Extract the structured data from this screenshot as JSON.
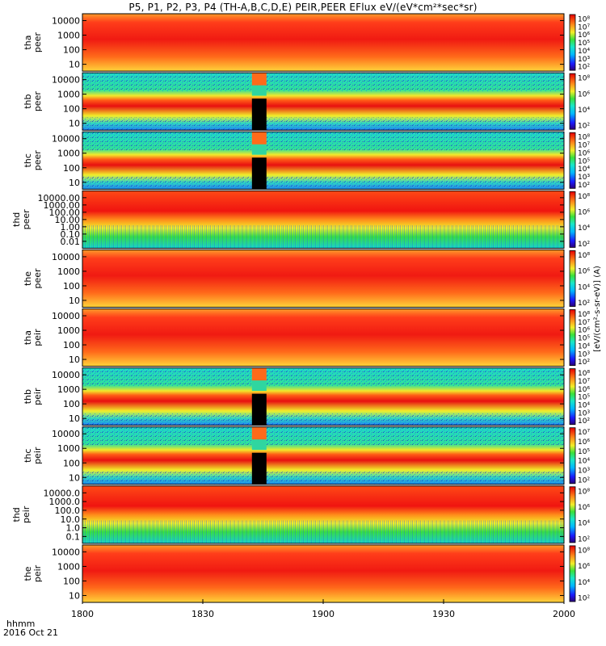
{
  "title": "P5, P1, P2, P3, P4 (TH-A,B,C,D,E) PEIR,PEER EFlux eV/(eV*cm²*sec*sr)",
  "footer": {
    "time_format": "hhmm",
    "date": "2016 Oct 21"
  },
  "chart_data": {
    "type": "heatmap",
    "x_axis": {
      "ticks": [
        "1800",
        "1830",
        "1900",
        "1930",
        "2000"
      ],
      "range": [
        "18:00",
        "20:00"
      ]
    },
    "colorbar_unit_label": "[eV/(cm²-s-sr-eV)] (A)",
    "panels": [
      {
        "name": "tha peer",
        "label": [
          "tha",
          "peer"
        ],
        "y_ticks": [
          "10000",
          "1000",
          "100",
          "10"
        ],
        "color_ticks": [
          "10⁸",
          "10⁷",
          "10⁶",
          "10⁵",
          "10⁴",
          "10³",
          "10²"
        ],
        "band": "broad"
      },
      {
        "name": "thb peer",
        "label": [
          "thb",
          "peer"
        ],
        "y_ticks": [
          "10000",
          "1000",
          "100",
          "10"
        ],
        "color_ticks": [
          "10⁸",
          "10⁶",
          "10⁴",
          "10²"
        ],
        "band": "mid",
        "gap": true
      },
      {
        "name": "thc peer",
        "label": [
          "thc",
          "peer"
        ],
        "y_ticks": [
          "10000",
          "1000",
          "100",
          "10"
        ],
        "color_ticks": [
          "10⁸",
          "10⁷",
          "10⁶",
          "10⁵",
          "10⁴",
          "10³",
          "10²"
        ],
        "band": "mid",
        "gap": true
      },
      {
        "name": "thd peer",
        "label": [
          "thd",
          "peer"
        ],
        "y_ticks": [
          "10000.00",
          "1000.00",
          "100.00",
          "10.00",
          "1.00",
          "0.10",
          "0.01"
        ],
        "color_ticks": [
          "10⁸",
          "10⁶",
          "10⁴",
          "10²"
        ],
        "band": "upper"
      },
      {
        "name": "the peer",
        "label": [
          "the",
          "peer"
        ],
        "y_ticks": [
          "10000",
          "1000",
          "100",
          "10"
        ],
        "color_ticks": [
          "10⁸",
          "10⁶",
          "10⁴",
          "10²"
        ],
        "band": "broad"
      },
      {
        "name": "tha peir",
        "label": [
          "tha",
          "peir"
        ],
        "y_ticks": [
          "10000",
          "1000",
          "100",
          "10"
        ],
        "color_ticks": [
          "10⁸",
          "10⁷",
          "10⁶",
          "10⁵",
          "10⁴",
          "10³",
          "10²"
        ],
        "band": "broad"
      },
      {
        "name": "thb peir",
        "label": [
          "thb",
          "peir"
        ],
        "y_ticks": [
          "10000",
          "1000",
          "100",
          "10"
        ],
        "color_ticks": [
          "10⁸",
          "10⁷",
          "10⁶",
          "10⁵",
          "10⁴",
          "10³",
          "10²"
        ],
        "band": "mid",
        "gap": true
      },
      {
        "name": "thc peir",
        "label": [
          "thc",
          "peir"
        ],
        "y_ticks": [
          "10000",
          "1000",
          "100",
          "10"
        ],
        "color_ticks": [
          "10⁷",
          "10⁶",
          "10⁵",
          "10⁴",
          "10³",
          "10²"
        ],
        "band": "mid",
        "gap": true
      },
      {
        "name": "thd peir",
        "label": [
          "thd",
          "peir"
        ],
        "y_ticks": [
          "10000.0",
          "1000.0",
          "100.0",
          "10.0",
          "1.0",
          "0.1"
        ],
        "color_ticks": [
          "10⁸",
          "10⁶",
          "10⁴",
          "10²"
        ],
        "band": "upper"
      },
      {
        "name": "the peir",
        "label": [
          "the",
          "peir"
        ],
        "y_ticks": [
          "10000",
          "1000",
          "100",
          "10"
        ],
        "color_ticks": [
          "10⁸",
          "10⁶",
          "10⁴",
          "10²"
        ],
        "band": "broad"
      }
    ]
  }
}
